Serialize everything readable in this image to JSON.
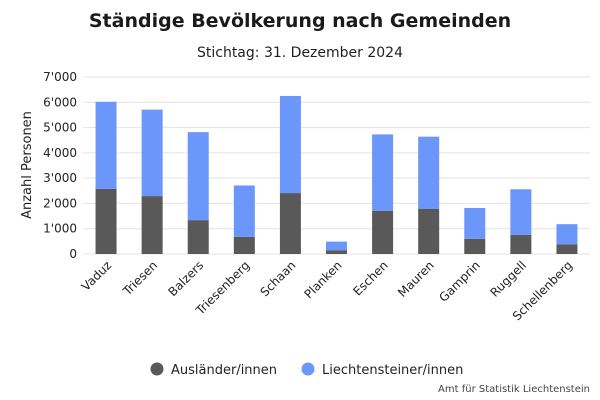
{
  "chart_data": {
    "type": "bar",
    "stacked": true,
    "title": "Ständige Bevölkerung nach Gemeinden",
    "subtitle": "Stichtag: 31. Dezember 2024",
    "ylabel": "Anzahl Personen",
    "xlabel": "",
    "ylim": [
      0,
      7000
    ],
    "yticks": [
      0,
      1000,
      2000,
      3000,
      4000,
      5000,
      6000,
      7000
    ],
    "ytick_labels": [
      "0",
      "1'000",
      "2'000",
      "3'000",
      "4'000",
      "5'000",
      "6'000",
      "7'000"
    ],
    "grid": true,
    "legend_position": "bottom",
    "categories": [
      "Vaduz",
      "Triesen",
      "Balzers",
      "Triesenberg",
      "Schaan",
      "Planken",
      "Eschen",
      "Mauren",
      "Gamprin",
      "Ruggell",
      "Schellenberg"
    ],
    "series": [
      {
        "name": "Ausländer/innen",
        "color": "#595959",
        "values": [
          2580,
          2290,
          1340,
          680,
          2410,
          150,
          1710,
          1780,
          600,
          760,
          380
        ]
      },
      {
        "name": "Liechtensteiner/innen",
        "color": "#6b97fa",
        "values": [
          3440,
          3420,
          3480,
          2030,
          3840,
          340,
          3020,
          2860,
          1220,
          1800,
          800
        ]
      }
    ],
    "source": "Amt für Statistik Liechtenstein"
  }
}
